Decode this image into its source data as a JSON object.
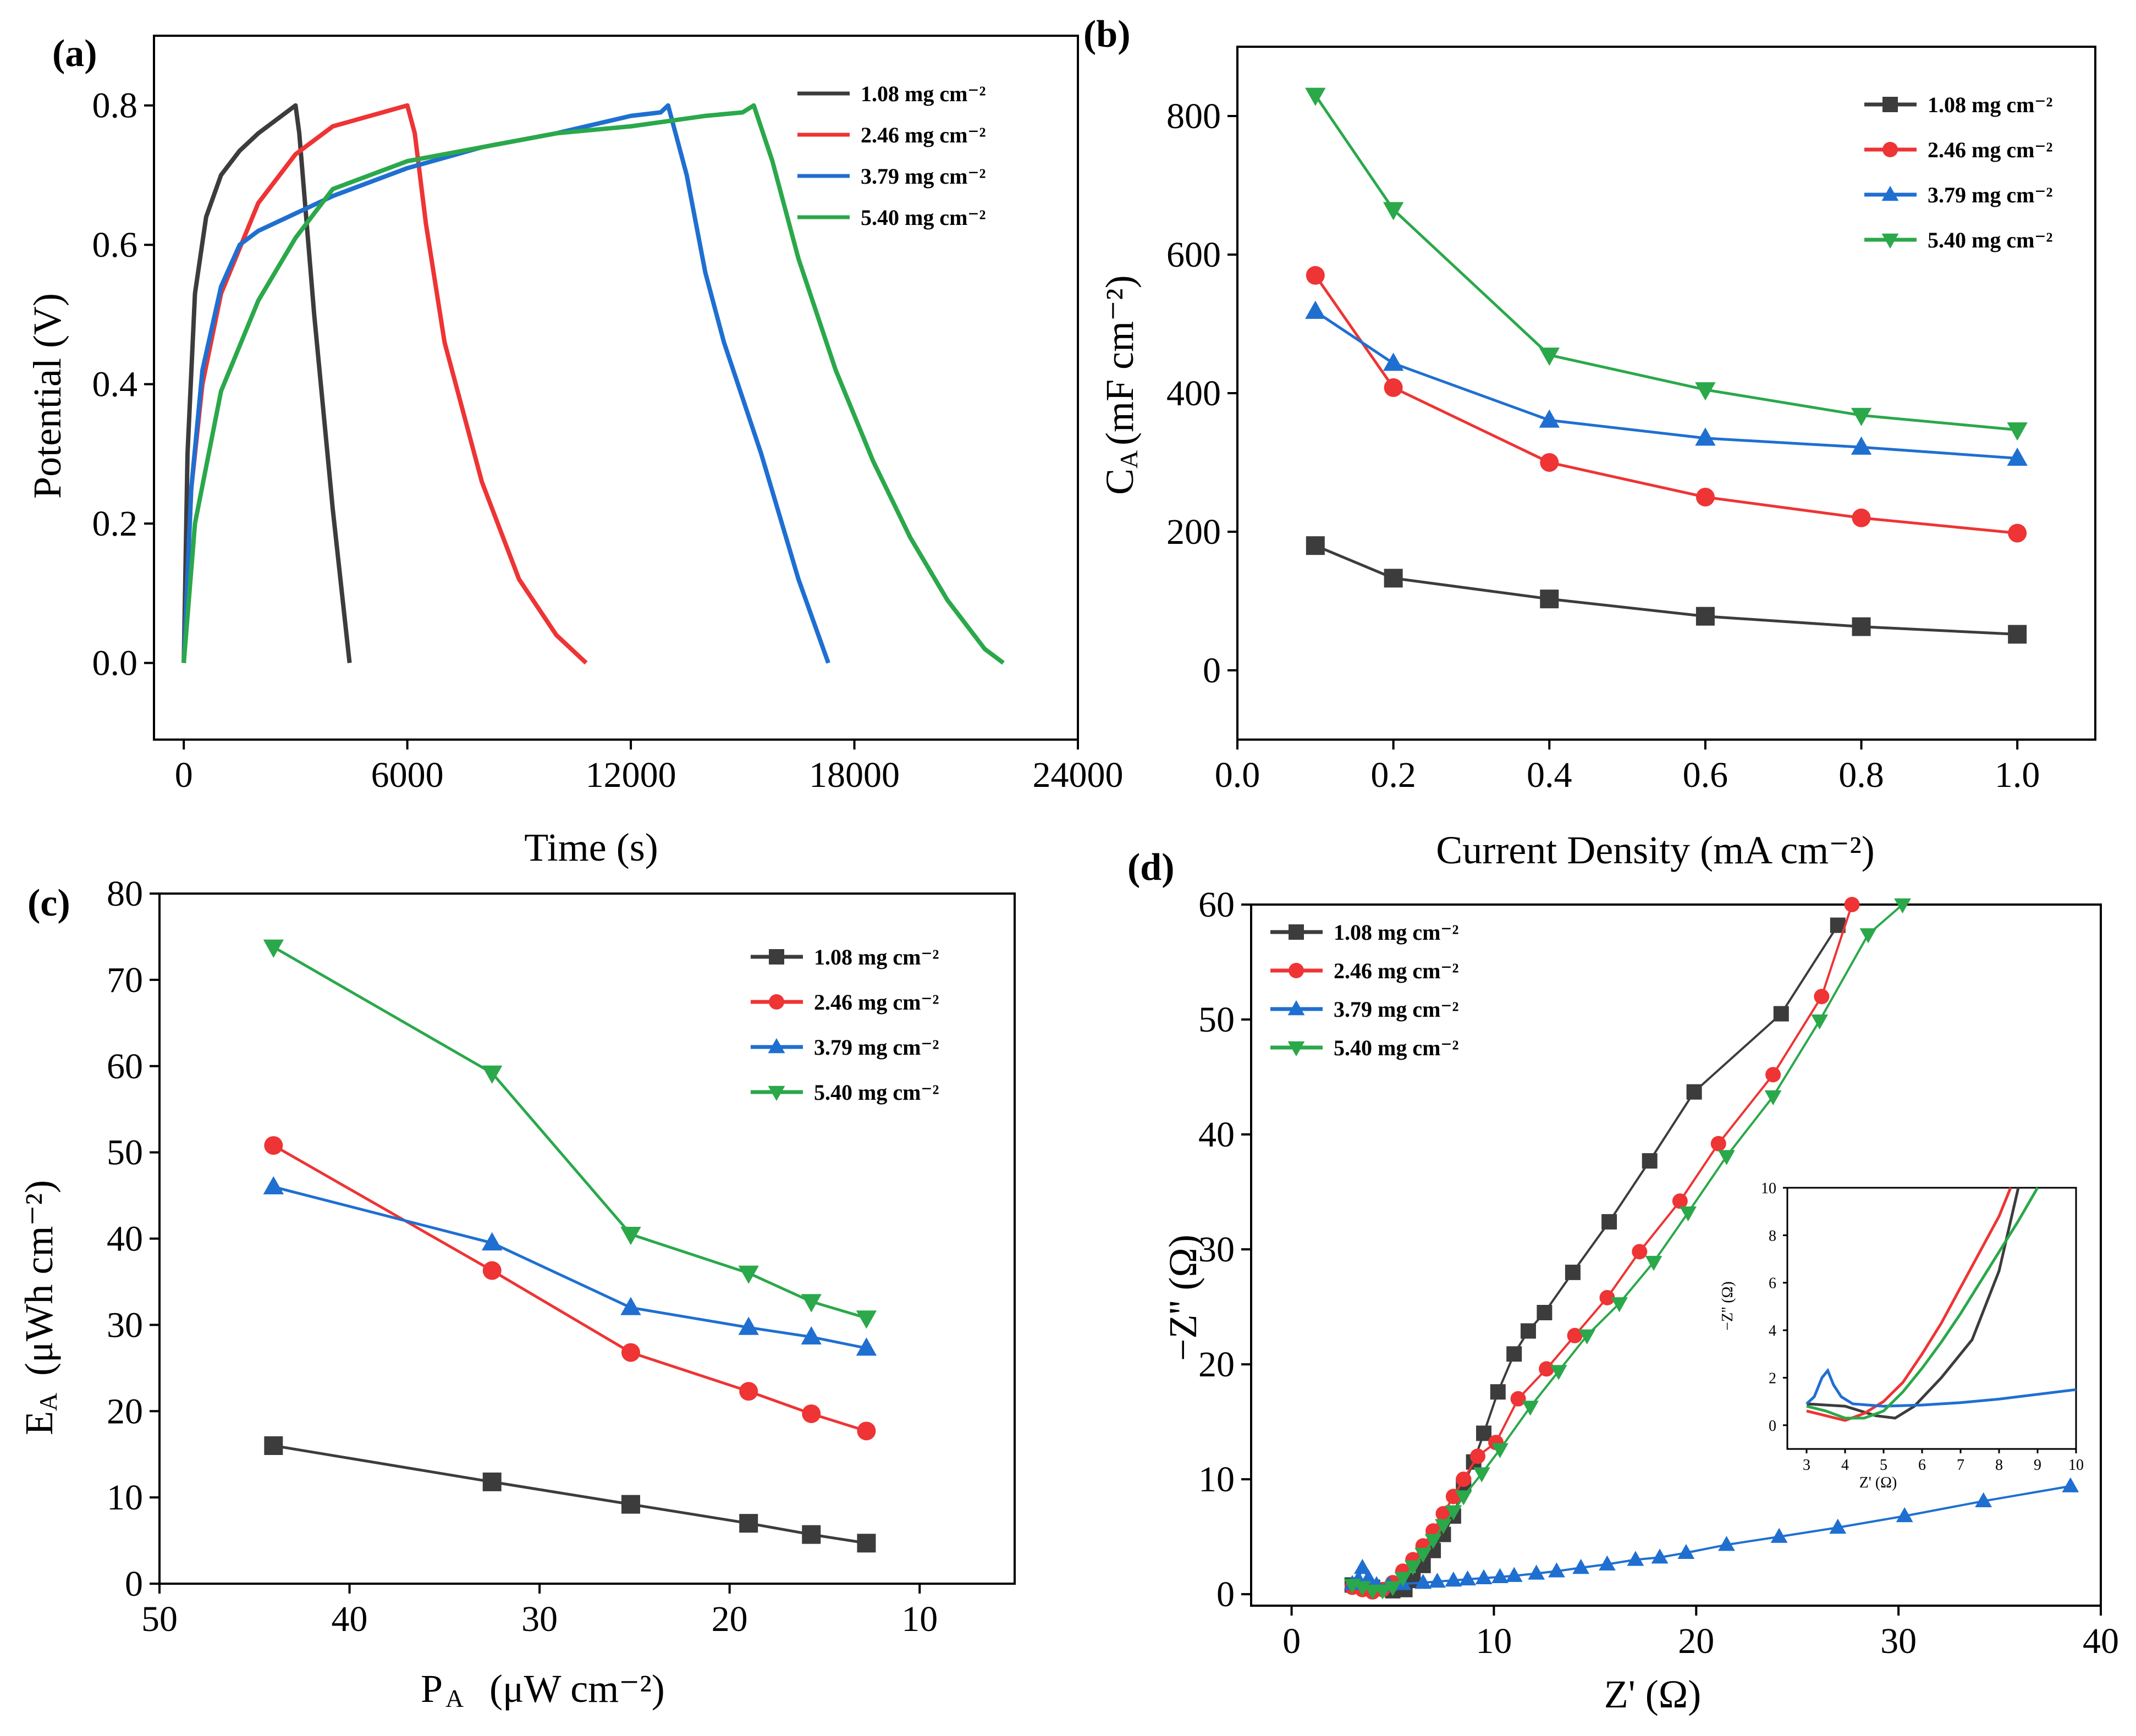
{
  "colors": {
    "s1": "#3c3c3c",
    "s2": "#ee3434",
    "s3": "#1f6fd1",
    "s4": "#2aa84a"
  },
  "legend_labels": [
    "1.08 mg cm⁻²",
    "2.46 mg cm⁻²",
    "3.79 mg cm⁻²",
    "5.40 mg cm⁻²"
  ],
  "chart_data": [
    {
      "id": "a",
      "type": "line",
      "panel_label": "(a)",
      "xlabel": "Time (s)",
      "ylabel": "Potential (V)",
      "xlim": [
        -800,
        24000
      ],
      "ylim": [
        -0.11,
        0.9
      ],
      "xticks": [
        0,
        6000,
        12000,
        18000,
        24000
      ],
      "xtick_labels": [
        "0",
        "6000",
        "12000",
        "18000",
        "24000"
      ],
      "yticks": [
        0.0,
        0.2,
        0.4,
        0.6,
        0.8
      ],
      "ytick_labels": [
        "0.0",
        "0.2",
        "0.4",
        "0.6",
        "0.8"
      ],
      "legend_position": "top-right",
      "series": [
        {
          "name": "1.08 mg cm⁻²",
          "x": [
            0,
            100,
            300,
            600,
            1000,
            1500,
            2000,
            2500,
            3000,
            3100,
            3500,
            4000,
            4450
          ],
          "y": [
            0,
            0.3,
            0.53,
            0.64,
            0.7,
            0.735,
            0.76,
            0.78,
            0.8,
            0.76,
            0.5,
            0.22,
            0
          ]
        },
        {
          "name": "2.46 mg cm⁻²",
          "x": [
            0,
            200,
            500,
            1000,
            2000,
            3000,
            4000,
            5000,
            6000,
            6200,
            6500,
            7000,
            8000,
            9000,
            10000,
            10800
          ],
          "y": [
            0,
            0.25,
            0.4,
            0.53,
            0.66,
            0.73,
            0.77,
            0.785,
            0.8,
            0.76,
            0.63,
            0.46,
            0.26,
            0.12,
            0.04,
            0.0
          ]
        },
        {
          "name": "3.79 mg cm⁻²",
          "x": [
            0,
            200,
            500,
            1000,
            1500,
            2000,
            4000,
            6000,
            8000,
            10000,
            12000,
            12800,
            13000,
            13500,
            14000,
            14500,
            15500,
            16500,
            17300
          ],
          "y": [
            0,
            0.25,
            0.42,
            0.54,
            0.6,
            0.62,
            0.67,
            0.71,
            0.74,
            0.76,
            0.785,
            0.79,
            0.8,
            0.7,
            0.56,
            0.46,
            0.3,
            0.12,
            0
          ]
        },
        {
          "name": "5.40 mg cm⁻²",
          "x": [
            0,
            300,
            1000,
            2000,
            3000,
            4000,
            6000,
            8000,
            10000,
            12000,
            14000,
            15000,
            15300,
            15800,
            16500,
            17500,
            18500,
            19500,
            20500,
            21500,
            22000
          ],
          "y": [
            0,
            0.2,
            0.39,
            0.52,
            0.61,
            0.68,
            0.72,
            0.74,
            0.76,
            0.77,
            0.785,
            0.79,
            0.8,
            0.72,
            0.58,
            0.42,
            0.29,
            0.18,
            0.09,
            0.02,
            0
          ]
        }
      ]
    },
    {
      "id": "b",
      "type": "line",
      "panel_label": "(b)",
      "xlabel": "Current Density (mA cm⁻²)",
      "ylabel": "C",
      "ylabel_sub": "A",
      "ylabel_units": "(mF cm⁻²)",
      "xlim": [
        0,
        1.1
      ],
      "ylim": [
        -100,
        900
      ],
      "xticks": [
        0.0,
        0.2,
        0.4,
        0.6,
        0.8,
        1.0
      ],
      "xtick_labels": [
        "0.0",
        "0.2",
        "0.4",
        "0.6",
        "0.8",
        "1.0"
      ],
      "yticks": [
        0,
        200,
        400,
        600,
        800
      ],
      "ytick_labels": [
        "0",
        "200",
        "400",
        "600",
        "800"
      ],
      "legend_position": "top-right",
      "categories": [
        0.1,
        0.2,
        0.4,
        0.6,
        0.8,
        1.0
      ],
      "series": [
        {
          "name": "1.08 mg cm⁻²",
          "marker": "square",
          "values": [
            180,
            133,
            103,
            78,
            63,
            52
          ]
        },
        {
          "name": "2.46 mg cm⁻²",
          "marker": "circle",
          "values": [
            570,
            408,
            300,
            250,
            220,
            198
          ]
        },
        {
          "name": "3.79 mg cm⁻²",
          "marker": "triangle-up",
          "values": [
            518,
            443,
            361,
            335,
            322,
            306
          ]
        },
        {
          "name": "5.40 mg cm⁻²",
          "marker": "triangle-down",
          "values": [
            830,
            665,
            455,
            405,
            368,
            347
          ]
        }
      ]
    },
    {
      "id": "c",
      "type": "line",
      "panel_label": "(c)",
      "xlabel": "P",
      "xlabel_sub": "A",
      "xlabel_units": "(μW cm⁻²)",
      "ylabel": "E",
      "ylabel_sub": "A",
      "ylabel_units": "(μWh cm⁻²)",
      "xlim": [
        50,
        5
      ],
      "ylim": [
        0,
        80
      ],
      "xticks": [
        50,
        40,
        30,
        20,
        10
      ],
      "xtick_labels": [
        "50",
        "40",
        "30",
        "20",
        "10"
      ],
      "yticks": [
        0,
        10,
        20,
        30,
        40,
        50,
        60,
        70,
        80
      ],
      "ytick_labels": [
        "0",
        "10",
        "20",
        "30",
        "40",
        "50",
        "60",
        "70",
        "80"
      ],
      "legend_position": "top-right",
      "categories": [
        44,
        32.5,
        25.2,
        19,
        15.7,
        12.8
      ],
      "series": [
        {
          "name": "1.08 mg cm⁻²",
          "marker": "square",
          "values": [
            16,
            11.8,
            9.2,
            7,
            5.7,
            4.7
          ]
        },
        {
          "name": "2.46 mg cm⁻²",
          "marker": "circle",
          "values": [
            50.8,
            36.3,
            26.8,
            22.3,
            19.7,
            17.7
          ]
        },
        {
          "name": "3.79 mg cm⁻²",
          "marker": "triangle-up",
          "values": [
            46,
            39.5,
            32,
            29.7,
            28.6,
            27.3
          ]
        },
        {
          "name": "5.40 mg cm⁻²",
          "marker": "triangle-down",
          "values": [
            73.8,
            59.2,
            40.5,
            36,
            32.7,
            30.8
          ]
        }
      ]
    },
    {
      "id": "d",
      "type": "scatter",
      "panel_label": "(d)",
      "xlabel": "Z' (Ω)",
      "ylabel": "−Z'' (Ω)",
      "xlim": [
        -2,
        40
      ],
      "ylim": [
        -1,
        60
      ],
      "xticks": [
        0,
        10,
        20,
        30,
        40
      ],
      "xtick_labels": [
        "0",
        "10",
        "20",
        "30",
        "40"
      ],
      "yticks": [
        0,
        10,
        20,
        30,
        40,
        50,
        60
      ],
      "ytick_labels": [
        "0",
        "10",
        "20",
        "30",
        "40",
        "50",
        "60"
      ],
      "legend_position": "top-left",
      "series": [
        {
          "name": "1.08 mg cm⁻²",
          "marker": "square",
          "dense": [
            [
              3,
              0.8
            ],
            [
              4,
              0.6
            ],
            [
              5,
              0.3
            ],
            [
              5.6,
              0.4
            ],
            [
              6,
              1.2
            ],
            [
              6.5,
              2.5
            ],
            [
              7,
              3.8
            ],
            [
              7.5,
              5.2
            ],
            [
              8,
              6.8
            ],
            [
              8.5,
              9.5
            ],
            [
              9,
              11.5
            ]
          ],
          "x": [
            9.5,
            10.2,
            11,
            11.7,
            12.5,
            13.9,
            15.7,
            17.7,
            19.9,
            24.2,
            27
          ],
          "y": [
            14,
            17.6,
            20.9,
            22.9,
            24.5,
            28,
            32.4,
            37.7,
            43.7,
            50.5,
            58.2
          ]
        },
        {
          "name": "2.46 mg cm⁻²",
          "marker": "circle",
          "dense": [
            [
              3,
              0.6
            ],
            [
              3.5,
              0.4
            ],
            [
              4,
              0.2
            ],
            [
              4.5,
              0.4
            ],
            [
              5,
              1
            ],
            [
              5.5,
              2
            ],
            [
              6,
              3
            ],
            [
              6.5,
              4.2
            ],
            [
              7,
              5.5
            ],
            [
              7.5,
              7
            ],
            [
              8,
              8.5
            ],
            [
              8.5,
              10
            ]
          ],
          "x": [
            9.2,
            10.1,
            11.2,
            12.6,
            14,
            15.6,
            17.2,
            19.2,
            21.1,
            23.8,
            26.2,
            27.7
          ],
          "y": [
            12,
            13.2,
            17,
            19.6,
            22.5,
            25.8,
            29.8,
            34.2,
            39.2,
            45.2,
            52,
            60
          ]
        },
        {
          "name": "3.79 mg cm⁻²",
          "marker": "triangle-up",
          "dense": [
            [
              3,
              0.9
            ],
            [
              3.3,
              1.3
            ],
            [
              3.5,
              2.3
            ],
            [
              3.8,
              1.4
            ],
            [
              4.2,
              0.8
            ],
            [
              4.8,
              0.8
            ],
            [
              5.5,
              0.9
            ]
          ],
          "x": [
            6.5,
            7.2,
            8,
            8.7,
            9.5,
            10.3,
            11,
            12.1,
            13.1,
            14.3,
            15.6,
            17,
            18.2,
            19.5,
            21.5,
            24.1,
            27,
            30.3,
            34.2,
            38.5
          ],
          "y": [
            1,
            1.1,
            1.2,
            1.3,
            1.4,
            1.5,
            1.6,
            1.8,
            2,
            2.3,
            2.6,
            3,
            3.2,
            3.6,
            4.3,
            5,
            5.8,
            6.8,
            8.1,
            9.4
          ]
        },
        {
          "name": "5.40 mg cm⁻²",
          "marker": "triangle-down",
          "dense": [
            [
              3,
              0.8
            ],
            [
              3.5,
              0.6
            ],
            [
              4,
              0.3
            ],
            [
              4.5,
              0.3
            ],
            [
              5,
              0.6
            ],
            [
              5.5,
              1.4
            ],
            [
              6,
              2.4
            ],
            [
              6.5,
              3.5
            ],
            [
              7,
              4.7
            ],
            [
              7.5,
              6
            ],
            [
              8,
              7.2
            ],
            [
              8.5,
              8.5
            ]
          ],
          "x": [
            9.4,
            10.3,
            11.8,
            13.2,
            14.6,
            16.2,
            17.9,
            19.6,
            21.5,
            23.8,
            26.1,
            28.5,
            30.2
          ],
          "y": [
            10.5,
            12.6,
            16.3,
            19.4,
            22.5,
            25.3,
            28.9,
            33.2,
            38.1,
            43.3,
            49.9,
            57.4,
            60
          ]
        }
      ],
      "inset": {
        "xlabel": "Z' (Ω)",
        "ylabel": "−Z'' (Ω)",
        "xlim": [
          2.5,
          10
        ],
        "ylim": [
          -1,
          10
        ],
        "xticks": [
          3,
          4,
          5,
          6,
          7,
          8,
          9,
          10
        ],
        "xtick_labels": [
          "3",
          "4",
          "5",
          "6",
          "7",
          "8",
          "9",
          "10"
        ],
        "yticks": [
          0,
          2,
          4,
          6,
          8,
          10
        ],
        "ytick_labels": [
          "0",
          "2",
          "4",
          "6",
          "8",
          "10"
        ],
        "series": [
          {
            "name": "1.08 mg cm⁻²",
            "x": [
              3,
              4,
              4.8,
              5.3,
              5.8,
              6.5,
              7.3,
              8,
              8.5
            ],
            "y": [
              0.9,
              0.8,
              0.4,
              0.3,
              0.8,
              2,
              3.6,
              6.5,
              10
            ]
          },
          {
            "name": "2.46 mg cm⁻²",
            "x": [
              3,
              3.5,
              4,
              4.5,
              5,
              5.5,
              6,
              6.5,
              7,
              7.5,
              8,
              8.3
            ],
            "y": [
              0.6,
              0.4,
              0.2,
              0.5,
              1,
              1.8,
              3,
              4.3,
              5.8,
              7.3,
              8.8,
              10
            ]
          },
          {
            "name": "3.79 mg cm⁻²",
            "x": [
              3,
              3.2,
              3.4,
              3.55,
              3.7,
              3.9,
              4.2,
              5,
              6,
              7,
              8,
              9,
              10
            ],
            "y": [
              0.9,
              1.2,
              2,
              2.3,
              1.7,
              1.2,
              0.9,
              0.8,
              0.85,
              0.95,
              1.1,
              1.3,
              1.5
            ]
          },
          {
            "name": "5.40 mg cm⁻²",
            "x": [
              3,
              3.5,
              4,
              4.5,
              5,
              5.5,
              6,
              6.5,
              7,
              7.5,
              8,
              8.5,
              9
            ],
            "y": [
              0.8,
              0.6,
              0.3,
              0.3,
              0.6,
              1.4,
              2.4,
              3.5,
              4.7,
              6,
              7.3,
              8.6,
              10
            ]
          }
        ]
      }
    }
  ]
}
